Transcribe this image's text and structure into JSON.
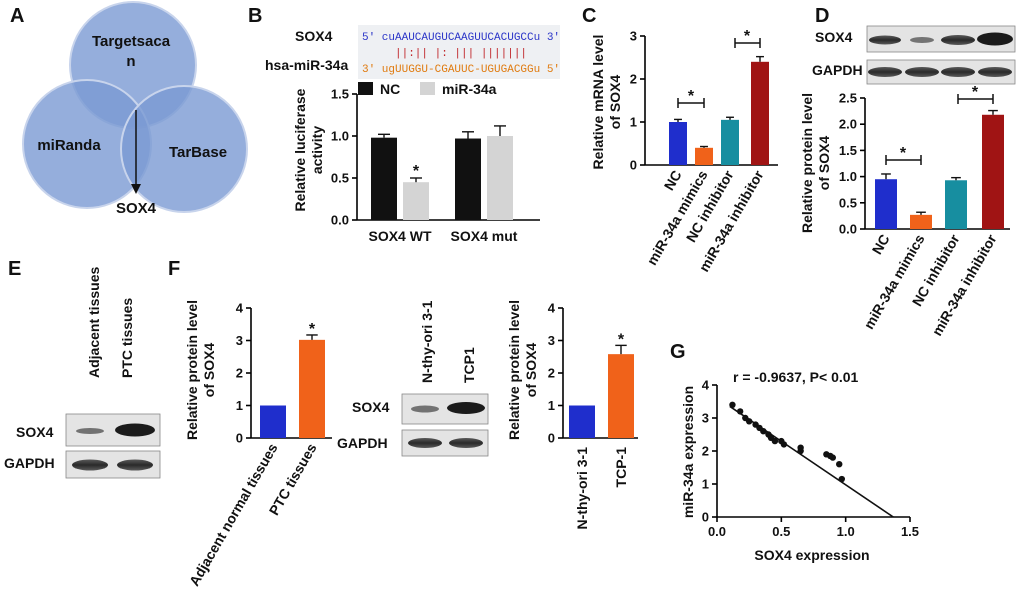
{
  "panel_labels": {
    "A": "A",
    "B": "B",
    "C": "C",
    "D": "D",
    "E": "E",
    "F": "F",
    "G": "G"
  },
  "venn": {
    "circles": [
      "Targetsaca",
      "n",
      "miRanda",
      "TarBase"
    ],
    "arrow_label": "SOX4"
  },
  "sequence": {
    "sox4_label": "SOX4",
    "sox4_seq": "5' cuAAUCAUGUCAAGUUCACUGCCu 3'",
    "pairing": "||:|| |: |||  |||||||",
    "mir_label": "hsa-miR-34a",
    "mir_seq": "3' ugUUGGU-CGAUUC-UGUGACGGu 5'"
  },
  "colors": {
    "black": "#111111",
    "grey": "#d4d4d4",
    "blue": "#1f2ecc",
    "orange": "#f0621a",
    "teal": "#178ea0",
    "darkred": "#a01414",
    "venn": "#8aa8d8",
    "venn_dark": "#6e8ec8"
  },
  "chart_data": [
    {
      "id": "B",
      "type": "bar",
      "categories": [
        "SOX4 WT",
        "SOX4 mut"
      ],
      "series": [
        {
          "name": "NC",
          "values": [
            0.98,
            0.97
          ],
          "errors": [
            0.04,
            0.08
          ]
        },
        {
          "name": "miR-34a",
          "values": [
            0.45,
            1.0
          ],
          "errors": [
            0.05,
            0.12
          ]
        }
      ],
      "ylabel": [
        "Relative luciferase",
        "activity"
      ],
      "ylim": [
        0,
        1.5
      ],
      "yticks": [
        "0.0",
        "0.5",
        "1.0",
        "1.5"
      ],
      "annotation": "*"
    },
    {
      "id": "C",
      "type": "bar",
      "categories": [
        "NC",
        "miR-34a mimics",
        "NC inhibitor",
        "miR-34a inhibitor"
      ],
      "values": [
        1.0,
        0.4,
        1.05,
        2.4
      ],
      "errors": [
        0.06,
        0.03,
        0.06,
        0.12
      ],
      "ylabel": [
        "Relative mRNA level",
        "of SOX4"
      ],
      "ylim": [
        0,
        3
      ],
      "yticks": [
        "0",
        "1",
        "2",
        "3"
      ],
      "annotation": "*"
    },
    {
      "id": "D",
      "type": "bar",
      "categories": [
        "NC",
        "miR-34a mimics",
        "NC inhibitor",
        "miR-34a inhibitor"
      ],
      "values": [
        0.95,
        0.27,
        0.93,
        2.18
      ],
      "errors": [
        0.1,
        0.05,
        0.05,
        0.08
      ],
      "ylabel": [
        "Relative protein level",
        "of SOX4"
      ],
      "ylim": [
        0,
        2.5
      ],
      "yticks": [
        "0.0",
        "0.5",
        "1.0",
        "1.5",
        "2.0",
        "2.5"
      ],
      "blot_labels": [
        "SOX4",
        "GAPDH"
      ],
      "annotation": "*"
    },
    {
      "id": "F1",
      "type": "bar",
      "categories": [
        "Adjacent normal tissues",
        "PTC tissues"
      ],
      "values": [
        1.0,
        3.02
      ],
      "errors": [
        0,
        0.15
      ],
      "ylabel": [
        "Relative protein level",
        "of SOX4"
      ],
      "ylim": [
        0,
        4
      ],
      "yticks": [
        "0",
        "1",
        "2",
        "3",
        "4"
      ],
      "annotation": "*"
    },
    {
      "id": "F2",
      "type": "bar",
      "categories": [
        "N-thy-ori 3-1",
        "TCP-1"
      ],
      "values": [
        1.0,
        2.58
      ],
      "errors": [
        0,
        0.27
      ],
      "ylabel": [
        "Relative protein level",
        "of SOX4"
      ],
      "ylim": [
        0,
        4
      ],
      "yticks": [
        "0",
        "1",
        "2",
        "3",
        "4"
      ],
      "annotation": "*"
    },
    {
      "id": "G",
      "type": "scatter",
      "x": [
        0.12,
        0.18,
        0.22,
        0.25,
        0.3,
        0.33,
        0.36,
        0.4,
        0.42,
        0.45,
        0.5,
        0.52,
        0.65,
        0.65,
        0.85,
        0.88,
        0.9,
        0.95,
        0.97
      ],
      "y": [
        3.4,
        3.2,
        3.0,
        2.9,
        2.8,
        2.7,
        2.6,
        2.5,
        2.4,
        2.3,
        2.3,
        2.2,
        2.1,
        2.0,
        1.9,
        1.85,
        1.8,
        1.6,
        1.15
      ],
      "fit": {
        "x0": 0.1,
        "y0": 3.35,
        "x1": 1.37,
        "y1": 0.0
      },
      "title": "r = -0.9637, P< 0.01",
      "xlabel": "SOX4 expression",
      "ylabel": "miR-34a expression",
      "xlim": [
        0,
        1.5
      ],
      "ylim": [
        0,
        4
      ],
      "xticks": [
        "0.0",
        "0.5",
        "1.0",
        "1.5"
      ],
      "yticks": [
        "0",
        "1",
        "2",
        "3",
        "4"
      ]
    }
  ],
  "blots": {
    "E": {
      "lanes": [
        "Adjacent tissues",
        "PTC tissues"
      ],
      "rows": [
        "SOX4",
        "GAPDH"
      ]
    },
    "F": {
      "lanes": [
        "N-thy-ori 3-1",
        "TCP1"
      ],
      "rows": [
        "SOX4",
        "GAPDH"
      ]
    }
  }
}
